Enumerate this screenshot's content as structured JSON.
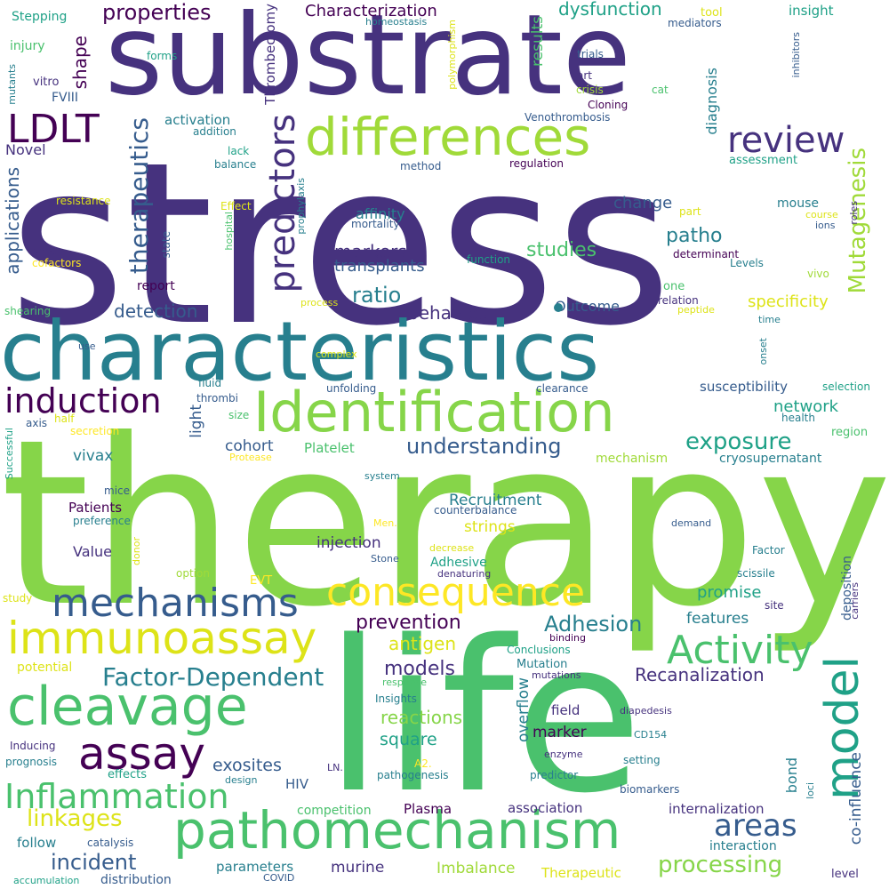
{
  "palette": {
    "dark_purple": "#440154",
    "indigo": "#46327e",
    "blue": "#365c8d",
    "teal_blue": "#277f8e",
    "teal": "#1fa187",
    "green": "#4ac16d",
    "light_green": "#86d549",
    "lime": "#a0da39",
    "yellow": "#dde318",
    "bright_yellow": "#fde725"
  },
  "words": [
    "stress",
    "therapy",
    "life",
    "substrate",
    "characteristics",
    "Identification",
    "differences",
    "pathomechanism",
    "cleavage",
    "immunoassay",
    "consequence",
    "mechanisms",
    "model",
    "assay",
    "Activity",
    "Inflammation",
    "review",
    "LDLT",
    "induction",
    "predictors",
    "therapeutics",
    "Mutagenesis",
    "properties",
    "Characterization",
    "dysfunction",
    "Thrombectomy",
    "shape",
    "applications",
    "areas",
    "processing",
    "exposure",
    "understanding",
    "linkages",
    "incident",
    "Adhesion",
    "Factor-Dependent",
    "Recanalization",
    "prevention",
    "models",
    "reactions",
    "antigen",
    "studies",
    "markers",
    "transplants",
    "ratio",
    "behaviour",
    "detection",
    "Outcome",
    "specificity",
    "patho",
    "change",
    "affinity",
    "network",
    "susceptibility",
    "cohort",
    "Platelet",
    "vivax",
    "light",
    "Recruitment",
    "strings",
    "injection",
    "Patients",
    "Value",
    "Adhesive",
    "promise",
    "features",
    "square",
    "marker",
    "field",
    "overflow",
    "exosites",
    "HIV",
    "bond",
    "co-influence",
    "deposition",
    "internalization",
    "Plasma",
    "association",
    "murine",
    "parameters",
    "Imbalance",
    "Therapeutic",
    "follow",
    "distribution",
    "accumulation",
    "Stepping",
    "injury",
    "mutants",
    "vitro",
    "forms",
    "FVIII",
    "activation",
    "addition",
    "Novel",
    "resistance",
    "shear",
    "cofactors",
    "Effect",
    "hospital",
    "state",
    "report",
    "lack",
    "balance",
    "prophylaxis",
    "mortality",
    "homeostasis",
    "polymorphism",
    "trials",
    "art",
    "crisis",
    "Cloning",
    "cat",
    "Venothrombosis",
    "mediators",
    "tool",
    "insight",
    "inhibitors",
    "diagnosis",
    "results",
    "regulation",
    "method",
    "assessment",
    "part",
    "course",
    "ions",
    "roles",
    "mouse",
    "determinant",
    "Levels",
    "vivo",
    "function",
    "process",
    "relation",
    "peptide",
    "one",
    "time",
    "onset",
    "shearing",
    "use",
    "complex",
    "fluid",
    "unfolding",
    "clearance",
    "selection",
    "thrombi",
    "size",
    "half",
    "axis",
    "secretion",
    "health",
    "region",
    "Protease",
    "Successful",
    "system",
    "mechanism",
    "cryosupernatant",
    "mice",
    "preference",
    "counterbalance",
    "demand",
    "Men.",
    "decrease",
    "Factor",
    "donor",
    "option",
    "Stone",
    "denaturing",
    "scissile",
    "EVT",
    "carriers",
    "site",
    "study",
    "binding",
    "Conclusions",
    "potential",
    "Mutation",
    "mutations",
    "response",
    "Insights",
    "diapedesis",
    "CD154",
    "Inducing",
    "prognosis",
    "enzyme",
    "setting",
    "A2.",
    "LN.",
    "predictor",
    "biomarkers",
    "effects",
    "design",
    "pathogenesis",
    "loci",
    "competition",
    "catalysis",
    "interaction",
    "COVID",
    "level"
  ]
}
